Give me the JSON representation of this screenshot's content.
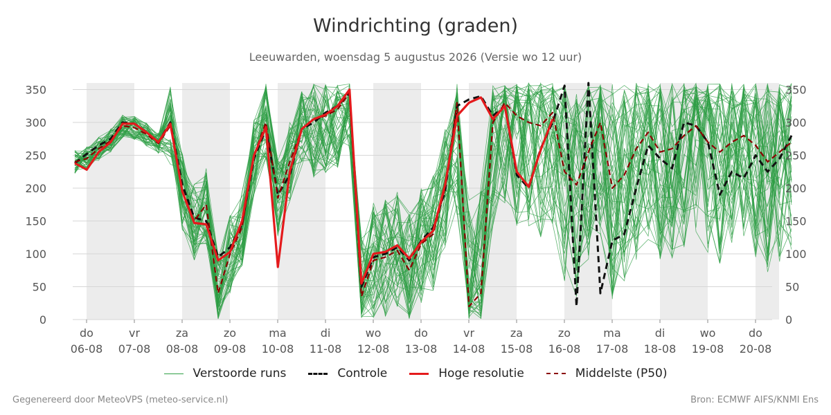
{
  "chart_data": {
    "type": "line",
    "title": "Windrichting (graden)",
    "subtitle": "Leeuwarden, woensdag  5 augustus 2026 (Versie wo 12 uur)",
    "ylim": [
      0,
      360
    ],
    "yticks": [
      0,
      50,
      100,
      150,
      200,
      250,
      300,
      350
    ],
    "x_range_days": [
      0,
      15
    ],
    "day_ticks": [
      {
        "day": "do",
        "date": "06-08"
      },
      {
        "day": "vr",
        "date": "07-08"
      },
      {
        "day": "za",
        "date": "08-08"
      },
      {
        "day": "zo",
        "date": "09-08"
      },
      {
        "day": "ma",
        "date": "10-08"
      },
      {
        "day": "di",
        "date": "11-08"
      },
      {
        "day": "wo",
        "date": "12-08"
      },
      {
        "day": "do",
        "date": "13-08"
      },
      {
        "day": "vr",
        "date": "14-08"
      },
      {
        "day": "za",
        "date": "15-08"
      },
      {
        "day": "zo",
        "date": "16-08"
      },
      {
        "day": "ma",
        "date": "17-08"
      },
      {
        "day": "di",
        "date": "18-08"
      },
      {
        "day": "wo",
        "date": "19-08"
      },
      {
        "day": "do",
        "date": "20-08"
      }
    ],
    "shaded_days": [
      "06-08",
      "08-08",
      "10-08",
      "12-08",
      "14-08",
      "16-08",
      "18-08",
      "20-08"
    ],
    "grid": true,
    "colors": {
      "ensemble": "#2e9e44",
      "control": "#111111",
      "hres": "#e41a1c",
      "p50": "#8b0000",
      "shade": "#ececec"
    },
    "series": [
      {
        "name": "Controle",
        "x": [
          0,
          0.25,
          0.5,
          0.75,
          1,
          1.25,
          1.5,
          1.75,
          2,
          2.25,
          2.5,
          2.75,
          3,
          3.25,
          3.5,
          3.75,
          4,
          4.25,
          4.5,
          4.75,
          5,
          5.25,
          5.5,
          5.75,
          6,
          6.25,
          6.5,
          6.75,
          7,
          7.25,
          7.5,
          7.75,
          8,
          8.25,
          8.5,
          8.75,
          9,
          9.25,
          9.5,
          9.75,
          10,
          10.25,
          10.5,
          10.75,
          11,
          11.25,
          11.5,
          11.75,
          12,
          12.25,
          12.5,
          12.75,
          13,
          13.25,
          13.5,
          13.75,
          14,
          14.25,
          14.5,
          14.75,
          15
        ],
        "values": [
          238,
          252,
          265,
          275,
          300,
          298,
          285,
          270,
          300,
          205,
          155,
          150,
          95,
          110,
          145,
          245,
          290,
          190,
          220,
          290,
          300,
          315,
          325,
          345,
          50,
          95,
          100,
          110,
          90,
          120,
          140,
          195,
          325,
          335,
          340,
          310,
          325,
          220,
          200,
          260,
          300,
          356,
          20,
          360,
          40,
          120,
          130,
          200,
          265,
          245,
          230,
          300,
          295,
          270,
          190,
          225,
          215,
          250,
          225,
          245,
          280
        ]
      },
      {
        "name": "Hoge resolutie",
        "x": [
          0,
          0.25,
          0.5,
          0.75,
          1,
          1.25,
          1.5,
          1.75,
          2,
          2.25,
          2.5,
          2.75,
          3,
          3.25,
          3.5,
          3.75,
          4,
          4.25,
          4.5,
          4.75,
          5,
          5.25,
          5.5,
          5.75,
          6,
          6.25,
          6.5,
          6.75,
          7,
          7.25,
          7.5,
          7.75,
          8,
          8.25,
          8.5,
          8.75,
          9,
          9.25,
          9.5,
          9.75,
          10
        ],
        "values": [
          238,
          228,
          255,
          270,
          298,
          298,
          285,
          270,
          298,
          195,
          147,
          145,
          90,
          103,
          150,
          250,
          293,
          80,
          225,
          290,
          305,
          312,
          325,
          350,
          55,
          100,
          103,
          113,
          93,
          118,
          135,
          205,
          310,
          330,
          338,
          305,
          325,
          225,
          202,
          258,
          305
        ]
      },
      {
        "name": "Middelste (P50)",
        "x": [
          0,
          0.25,
          0.5,
          0.75,
          1,
          1.25,
          1.5,
          1.75,
          2,
          2.25,
          2.5,
          2.75,
          3,
          3.25,
          3.5,
          3.75,
          4,
          4.25,
          4.5,
          4.75,
          5,
          5.25,
          5.5,
          5.75,
          6,
          6.25,
          6.5,
          6.75,
          7,
          7.25,
          7.5,
          7.75,
          8,
          8.25,
          8.5,
          8.75,
          9,
          9.25,
          9.5,
          9.75,
          10,
          10.25,
          10.5,
          10.75,
          11,
          11.25,
          11.5,
          11.75,
          12,
          12.25,
          12.5,
          12.75,
          13,
          13.25,
          13.5,
          13.75,
          14,
          14.25,
          14.5,
          14.75,
          15
        ],
        "values": [
          240,
          245,
          260,
          272,
          295,
          292,
          282,
          268,
          295,
          195,
          150,
          175,
          40,
          100,
          140,
          250,
          300,
          185,
          240,
          290,
          305,
          310,
          320,
          345,
          35,
          90,
          95,
          105,
          75,
          115,
          130,
          200,
          330,
          20,
          40,
          300,
          330,
          310,
          300,
          295,
          315,
          225,
          205,
          255,
          300,
          200,
          220,
          260,
          285,
          255,
          260,
          280,
          295,
          270,
          255,
          270,
          280,
          265,
          240,
          255,
          270
        ]
      }
    ],
    "legend": {
      "ensemble": "Verstoorde runs",
      "control": "Controle",
      "hres": "Hoge resolutie",
      "p50": "Middelste (P50)"
    }
  },
  "footer": {
    "left": "Gegenereerd door MeteoVPS (meteo-service.nl)",
    "right": "Bron: ECMWF AIFS/KNMI Ens"
  }
}
